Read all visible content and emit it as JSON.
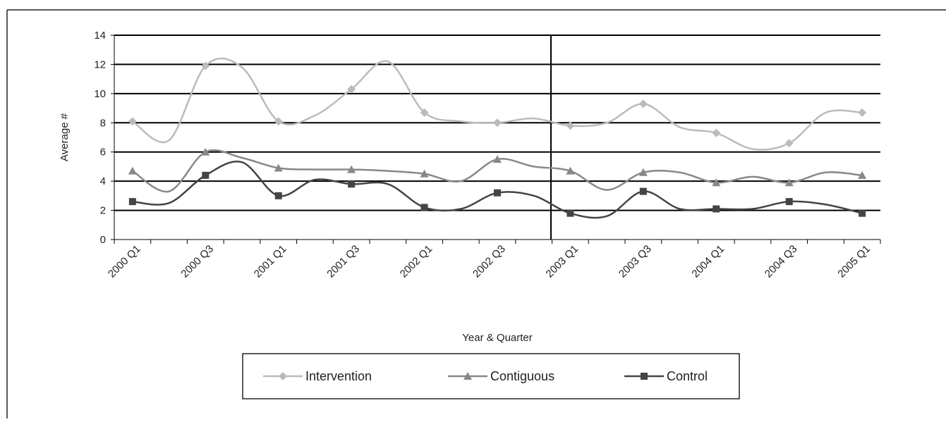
{
  "chart_data": {
    "type": "line",
    "y_label": "Average #",
    "x_label": "Year & Quarter",
    "categories": [
      "2000 Q1",
      null,
      "2000 Q3",
      null,
      "2001 Q1",
      null,
      "2001 Q3",
      null,
      "2002 Q1",
      null,
      "2002 Q3",
      null,
      "2003 Q1",
      null,
      "2003 Q3",
      null,
      "2004 Q1",
      null,
      "2004 Q3",
      null,
      "2005 Q1"
    ],
    "series": [
      {
        "name": "Intervention",
        "color": "#bbbbbb",
        "values": [
          8.1,
          6.8,
          11.9,
          11.8,
          8.1,
          8.5,
          10.3,
          12.2,
          8.7,
          8.1,
          8.0,
          8.3,
          7.8,
          8.0,
          9.3,
          7.7,
          7.3,
          6.2,
          6.6,
          8.7,
          8.7
        ]
      },
      {
        "name": "Contiguous",
        "color": "#888888",
        "values": [
          4.7,
          3.3,
          6.0,
          5.6,
          4.9,
          4.8,
          4.8,
          4.7,
          4.5,
          4.0,
          5.5,
          5.0,
          4.7,
          3.4,
          4.6,
          4.6,
          3.9,
          4.3,
          3.9,
          4.6,
          4.4
        ]
      },
      {
        "name": "Control",
        "color": "#444444",
        "values": [
          2.6,
          2.5,
          4.4,
          5.3,
          3.0,
          4.1,
          3.8,
          3.8,
          2.2,
          2.1,
          3.2,
          3.0,
          1.8,
          1.6,
          3.3,
          2.1,
          2.1,
          2.1,
          2.6,
          2.4,
          1.8
        ]
      }
    ],
    "ylim": [
      0,
      14
    ],
    "yticks": [
      0,
      2,
      4,
      6,
      8,
      10,
      12,
      14
    ],
    "grid": true
  }
}
